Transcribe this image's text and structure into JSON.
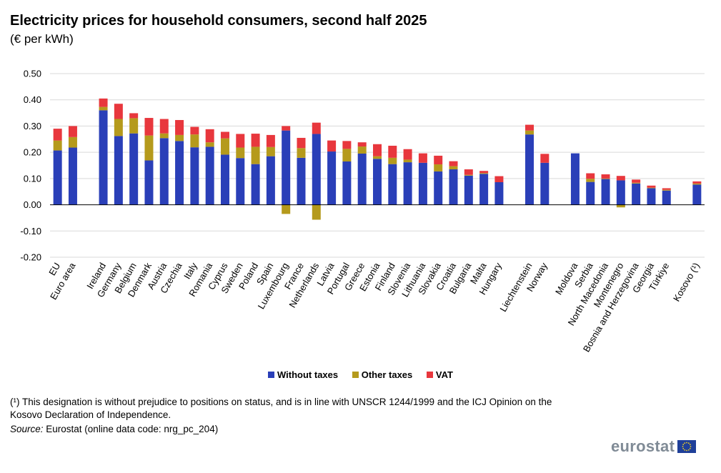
{
  "title": "Electricity prices for household consumers, second half 2025",
  "subtitle": "(€ per kWh)",
  "legend": {
    "without_taxes": "Without taxes",
    "other_taxes": "Other taxes",
    "vat": "VAT"
  },
  "footnote": "(¹) This designation is without prejudice to positions on status, and is in line with UNSCR 1244/1999 and the ICJ Opinion on the Kosovo Declaration of Independence.",
  "source": {
    "label": "Source:",
    "text": " Eurostat (online data code: nrg_pc_204)"
  },
  "logo_text": "eurostat",
  "colors": {
    "without_taxes": "#2a3fb8",
    "other_taxes": "#b59a1c",
    "vat": "#e8373d",
    "grid": "#d9d9d9",
    "axis": "#000000"
  },
  "chart_data": {
    "type": "bar",
    "stacked": true,
    "ylim": [
      -0.2,
      0.5
    ],
    "yticks": [
      "0.50",
      "0.40",
      "0.30",
      "0.20",
      "0.10",
      "0.00",
      "-0.10",
      "-0.20"
    ],
    "ytick_values": [
      0.5,
      0.4,
      0.3,
      0.2,
      0.1,
      0.0,
      -0.1,
      -0.2
    ],
    "grid": true,
    "legend_position": "bottom",
    "categories": [
      "EU",
      "Euro area",
      "",
      "Ireland",
      "Germany",
      "Belgium",
      "Denmark",
      "Austria",
      "Czechia",
      "Italy",
      "Romania",
      "Cyprus",
      "Sweden",
      "Poland",
      "Spain",
      "Luxembourg",
      "France",
      "Netherlands",
      "Latvia",
      "Portugal",
      "Greece",
      "Estonia",
      "Finland",
      "Slovenia",
      "Lithuania",
      "Slovakia",
      "Croatia",
      "Bulgaria",
      "Malta",
      "Hungary",
      "",
      "Liechtenstein",
      "Norway",
      "",
      "Moldova",
      "Serbia",
      "North Macedonia",
      "Montenegro",
      "Bosnia and Herzegovina",
      "Georgia",
      "Türkiye",
      "",
      "Kosovo (¹)"
    ],
    "series": [
      {
        "name": "Without taxes",
        "values": [
          0.207,
          0.218,
          null,
          0.36,
          0.262,
          0.272,
          0.169,
          0.254,
          0.243,
          0.219,
          0.221,
          0.191,
          0.178,
          0.155,
          0.185,
          0.283,
          0.179,
          0.27,
          0.203,
          0.165,
          0.195,
          0.175,
          0.155,
          0.162,
          0.16,
          0.127,
          0.135,
          0.111,
          0.118,
          0.086,
          null,
          0.268,
          0.16,
          null,
          0.196,
          0.087,
          0.098,
          0.093,
          0.081,
          0.063,
          0.054,
          null,
          0.077
        ]
      },
      {
        "name": "Other taxes",
        "values": [
          0.038,
          0.04,
          null,
          0.013,
          0.065,
          0.058,
          0.095,
          0.018,
          0.023,
          0.049,
          0.017,
          0.062,
          0.04,
          0.066,
          0.035,
          -0.035,
          0.037,
          -0.057,
          0.0,
          0.048,
          0.027,
          0.01,
          0.024,
          0.01,
          0.0,
          0.027,
          0.012,
          0.003,
          0.003,
          0.0,
          null,
          0.015,
          0.0,
          null,
          0.0,
          0.012,
          0.002,
          -0.01,
          0.003,
          0.002,
          0.003,
          null,
          0.004
        ]
      },
      {
        "name": "VAT",
        "values": [
          0.045,
          0.042,
          null,
          0.032,
          0.058,
          0.019,
          0.067,
          0.055,
          0.057,
          0.029,
          0.05,
          0.025,
          0.052,
          0.05,
          0.046,
          0.017,
          0.039,
          0.043,
          0.042,
          0.03,
          0.016,
          0.046,
          0.046,
          0.04,
          0.036,
          0.033,
          0.019,
          0.021,
          0.008,
          0.023,
          null,
          0.022,
          0.034,
          null,
          0.0,
          0.021,
          0.016,
          0.017,
          0.012,
          0.008,
          0.006,
          null,
          0.008
        ]
      }
    ]
  }
}
